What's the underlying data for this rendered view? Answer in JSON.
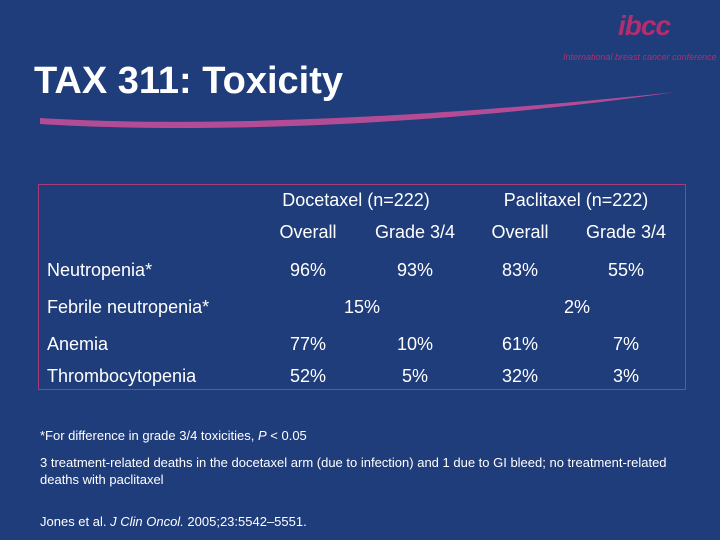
{
  "title": "TAX 311: Toxicity",
  "logo": {
    "mark": "ibcc",
    "subtitle": "International breast cancer conference"
  },
  "table": {
    "groups": [
      {
        "label": "Docetaxel (n=222)"
      },
      {
        "label": "Paclitaxel (n=222)"
      }
    ],
    "subheaders": [
      "Overall",
      "Grade 3/4",
      "Overall",
      "Grade 3/4"
    ],
    "rows": [
      {
        "label": "Neutropenia*",
        "values": [
          "96%",
          "93%",
          "83%",
          "55%"
        ]
      },
      {
        "label": "Febrile neutropenia*",
        "docetaxel": "15%",
        "paclitaxel": "2%"
      },
      {
        "label": "Anemia",
        "values": [
          "77%",
          "10%",
          "61%",
          "7%"
        ]
      },
      {
        "label": "Thrombocytopenia",
        "values": [
          "52%",
          "5%",
          "32%",
          "3%"
        ]
      }
    ]
  },
  "footnotes": {
    "significance_prefix": "*For difference in grade 3/4  toxicities, ",
    "significance_p": "P",
    "significance_suffix": " < 0.05",
    "deaths": "3 treatment-related deaths in the docetaxel arm (due to infection) and 1 due to GI bleed; no treatment-related deaths with paclitaxel"
  },
  "citation": {
    "authors": "Jones et al. ",
    "journal": "J Clin Oncol.",
    "details": " 2005;23:5542–5551."
  },
  "colors": {
    "background": "#1f3c7b",
    "accent": "#b32e6e",
    "text": "#ffffff"
  }
}
